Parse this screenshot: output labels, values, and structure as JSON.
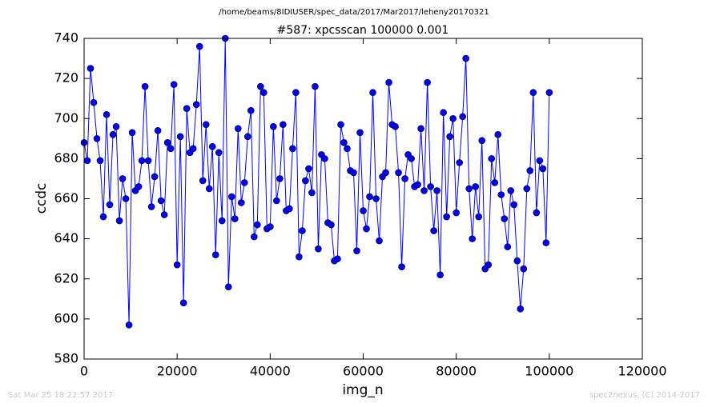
{
  "header": "/home/beams/8IDIUSER/spec_data/2017/Mar2017/leheny20170321",
  "footer_left": "Sat Mar 25 18:22:57 2017",
  "footer_right": "spec2nexus, (C) 2014-2017",
  "chart_data": {
    "type": "line",
    "title": "#587: xpcsscan 100000 0.001",
    "xlabel": "img_n",
    "ylabel": "ccdc",
    "xlim": [
      0,
      120000
    ],
    "xticks": [
      0,
      20000,
      40000,
      60000,
      80000,
      100000,
      120000
    ],
    "ylim": [
      580,
      740
    ],
    "yticks": [
      580,
      600,
      620,
      640,
      660,
      680,
      700,
      720,
      740
    ],
    "grid": false,
    "x": [
      0,
      690,
      1379,
      2069,
      2759,
      3448,
      4138,
      4828,
      5517,
      6207,
      6897,
      7586,
      8276,
      8966,
      9655,
      10345,
      11034,
      11724,
      12414,
      13103,
      13793,
      14483,
      15172,
      15862,
      16552,
      17241,
      17931,
      18621,
      19310,
      20000,
      20690,
      21379,
      22069,
      22759,
      23448,
      24138,
      24828,
      25517,
      26207,
      26897,
      27586,
      28276,
      28966,
      29655,
      30345,
      31034,
      31724,
      32414,
      33103,
      33793,
      34483,
      35172,
      35862,
      36552,
      37241,
      37931,
      38621,
      39310,
      40000,
      40690,
      41379,
      42069,
      42759,
      43448,
      44138,
      44828,
      45517,
      46207,
      46897,
      47586,
      48276,
      48966,
      49655,
      50345,
      51034,
      51724,
      52414,
      53103,
      53793,
      54483,
      55172,
      55862,
      56552,
      57241,
      57931,
      58621,
      59310,
      60000,
      60690,
      61379,
      62069,
      62759,
      63448,
      64138,
      64828,
      65517,
      66207,
      66897,
      67586,
      68276,
      68966,
      69655,
      70345,
      71034,
      71724,
      72414,
      73103,
      73793,
      74483,
      75172,
      75862,
      76552,
      77241,
      77931,
      78621,
      79310,
      80000,
      80690,
      81379,
      82069,
      82759,
      83448,
      84138,
      84828,
      85517,
      86207,
      86897,
      87586,
      88276,
      88966,
      89655,
      90345,
      91034,
      91724,
      92414,
      93103,
      93793,
      94483,
      95172,
      95862,
      96552,
      97241,
      97931,
      98621,
      99310,
      100000
    ],
    "series": [
      {
        "name": "ccdc",
        "color": "#0000ff",
        "values": [
          688,
          679,
          725,
          708,
          690,
          679,
          651,
          702,
          657,
          692,
          696,
          649,
          670,
          660,
          597,
          693,
          664,
          666,
          679,
          716,
          679,
          656,
          671,
          694,
          659,
          652,
          688,
          685,
          717,
          627,
          691,
          608,
          705,
          683,
          685,
          707,
          736,
          669,
          697,
          665,
          686,
          632,
          683,
          649,
          740,
          616,
          661,
          650,
          695,
          658,
          668,
          691,
          704,
          641,
          647,
          716,
          713,
          645,
          646,
          696,
          659,
          670,
          697,
          654,
          655,
          685,
          713,
          631,
          644,
          669,
          675,
          663,
          716,
          635,
          682,
          680,
          648,
          647,
          629,
          630,
          697,
          688,
          685,
          674,
          673,
          634,
          693,
          654,
          645,
          661,
          713,
          660,
          639,
          671,
          673,
          718,
          697,
          696,
          673,
          626,
          670,
          682,
          680,
          666,
          667,
          695,
          664,
          718,
          666,
          644,
          664,
          622,
          703,
          651,
          691,
          700,
          653,
          678,
          701,
          730,
          665,
          640,
          666,
          651,
          689,
          625,
          627,
          680,
          668,
          692,
          662,
          650,
          636,
          664,
          657,
          629,
          605,
          625,
          665,
          674,
          713,
          653,
          679,
          675,
          638,
          713
        ]
      }
    ]
  }
}
